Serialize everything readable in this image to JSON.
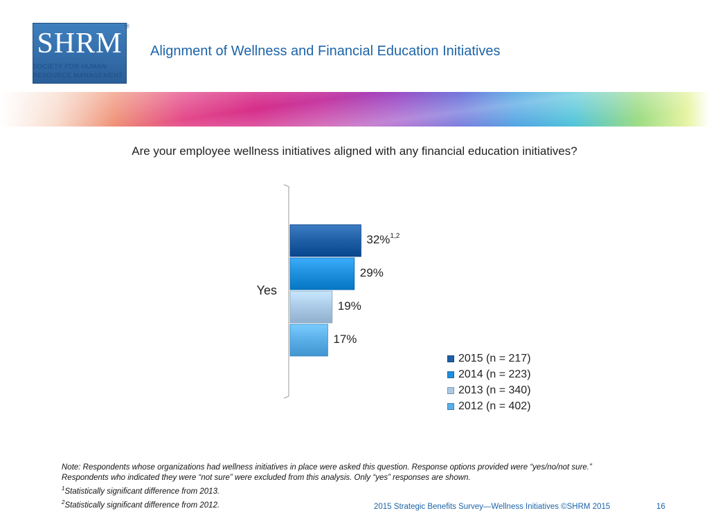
{
  "header": {
    "logo_text": "SHRM",
    "logo_line1": "SOCIETY FOR HUMAN",
    "logo_line2": "RESOURCE MANAGEMENT",
    "logo_mark": "®",
    "title": "Alignment of Wellness and Financial Education Initiatives"
  },
  "question": "Are your employee wellness initiatives aligned with any financial education initiatives?",
  "chart_data": {
    "type": "bar",
    "orientation": "horizontal",
    "categories": [
      "Yes"
    ],
    "series": [
      {
        "name": "2015 (n = 217)",
        "values": [
          32
        ],
        "label": "32%",
        "superscript": "1,2",
        "color": "#1f5fa6"
      },
      {
        "name": "2014 (n = 223)",
        "values": [
          29
        ],
        "label": "29%",
        "superscript": "",
        "color": "#1e8fdc"
      },
      {
        "name": "2013 (n = 340)",
        "values": [
          19
        ],
        "label": "19%",
        "superscript": "",
        "color": "#aac9e6"
      },
      {
        "name": "2012 (n = 402)",
        "values": [
          17
        ],
        "label": "17%",
        "superscript": "",
        "color": "#5aaee8"
      }
    ],
    "value_unit": "%",
    "xlim": [
      0,
      100
    ],
    "grid": false,
    "legend_position": "bottom-right"
  },
  "note": {
    "line1": "Note: Respondents whose organizations had wellness initiatives in place were asked this question. Response options provided were “yes/no/not sure.” Respondents who indicated they were “not sure” were excluded from this analysis. Only “yes” responses are shown.",
    "footnote1_mark": "1",
    "footnote1": "Statistically significant difference from 2013.",
    "footnote2_mark": "2",
    "footnote2": "Statistically significant difference from 2012."
  },
  "footer": {
    "text": "2015 Strategic Benefits Survey—Wellness Initiatives ©SHRM 2015",
    "page": "16"
  }
}
